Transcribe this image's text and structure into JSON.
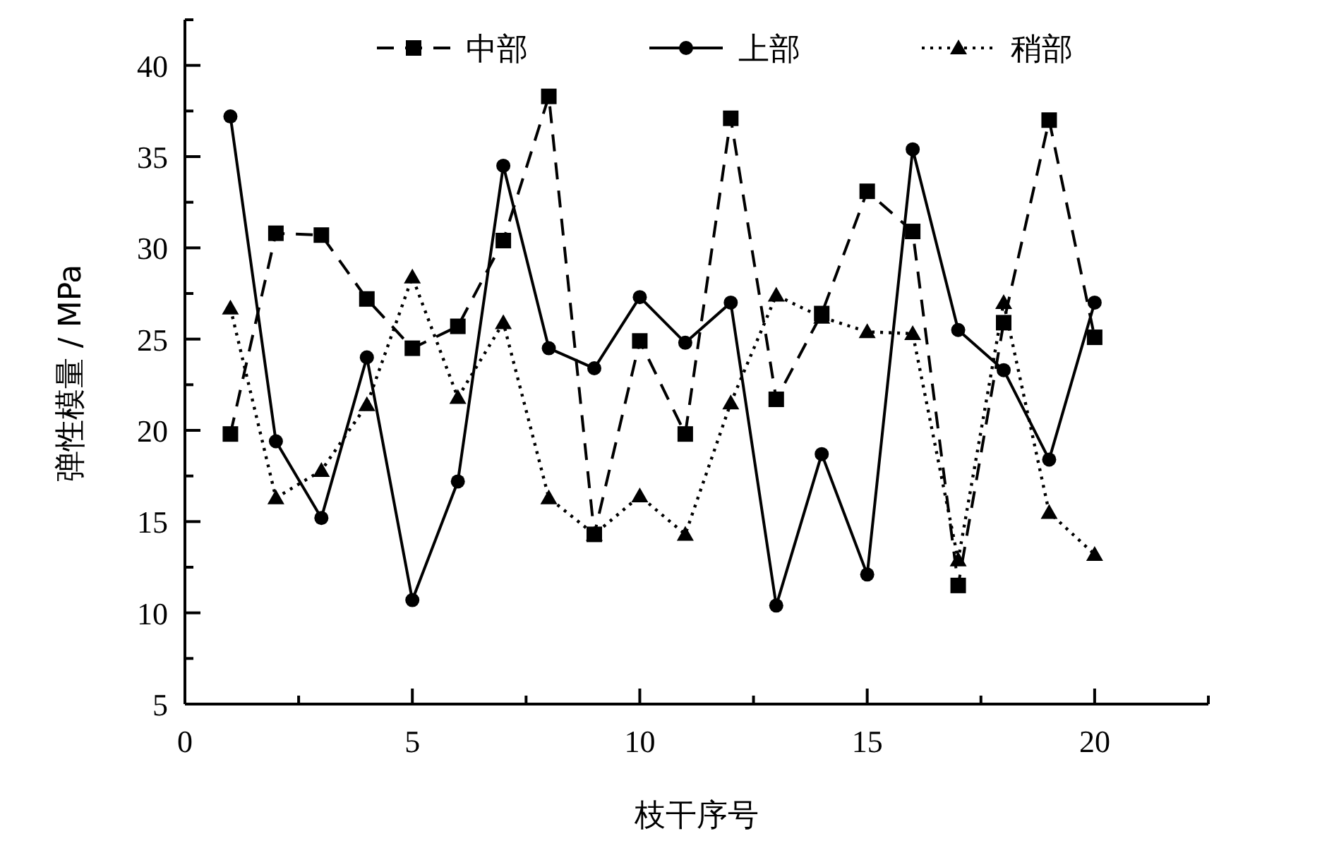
{
  "chart_data": {
    "type": "line",
    "xlabel": "枝干序号",
    "ylabel": "弹性模量 / MPa",
    "x": [
      1,
      2,
      3,
      4,
      5,
      6,
      7,
      8,
      9,
      10,
      11,
      12,
      13,
      14,
      15,
      16,
      17,
      18,
      19,
      20
    ],
    "xlim": [
      0,
      22.5
    ],
    "ylim": [
      5,
      42.5
    ],
    "xticks": [
      0,
      {
        "value": 2.5,
        "label": null
      },
      5,
      {
        "value": 7.5,
        "label": null
      },
      10,
      {
        "value": 12.5,
        "label": null
      },
      15,
      {
        "value": 17.5,
        "label": null
      },
      20,
      {
        "value": 22.5,
        "label": null
      }
    ],
    "yticks": [
      5,
      {
        "value": 7.5,
        "label": null
      },
      10,
      {
        "value": 12.5,
        "label": null
      },
      15,
      {
        "value": 17.5,
        "label": null
      },
      20,
      {
        "value": 22.5,
        "label": null
      },
      25,
      {
        "value": 27.5,
        "label": null
      },
      30,
      {
        "value": 32.5,
        "label": null
      },
      35,
      {
        "value": 37.5,
        "label": null
      },
      40,
      {
        "value": 42.5,
        "label": null
      }
    ],
    "grid": false,
    "legend": "top right",
    "series": [
      {
        "name": "中部",
        "color": "#000000",
        "marker": "square",
        "line_style": "dashed",
        "values": [
          19.8,
          30.8,
          30.7,
          27.2,
          24.5,
          25.7,
          30.4,
          38.3,
          14.3,
          24.9,
          19.8,
          37.1,
          21.7,
          26.4,
          33.1,
          30.9,
          11.5,
          25.9,
          37.0,
          25.1
        ]
      },
      {
        "name": "上部",
        "color": "#000000",
        "marker": "circle",
        "line_style": "solid",
        "values": [
          37.2,
          19.4,
          15.2,
          24.0,
          10.7,
          17.2,
          34.5,
          24.5,
          23.4,
          27.3,
          24.8,
          27.0,
          10.4,
          18.7,
          12.1,
          35.4,
          25.5,
          23.3,
          18.4,
          27.0
        ]
      },
      {
        "name": "稍部",
        "color": "#000000",
        "marker": "triangle",
        "line_style": "dotted",
        "values": [
          26.7,
          16.3,
          17.8,
          21.4,
          28.4,
          21.8,
          25.9,
          16.3,
          14.3,
          16.4,
          14.3,
          21.5,
          27.4,
          26.2,
          25.4,
          25.3,
          12.9,
          27.0,
          15.5,
          13.2
        ]
      }
    ]
  }
}
